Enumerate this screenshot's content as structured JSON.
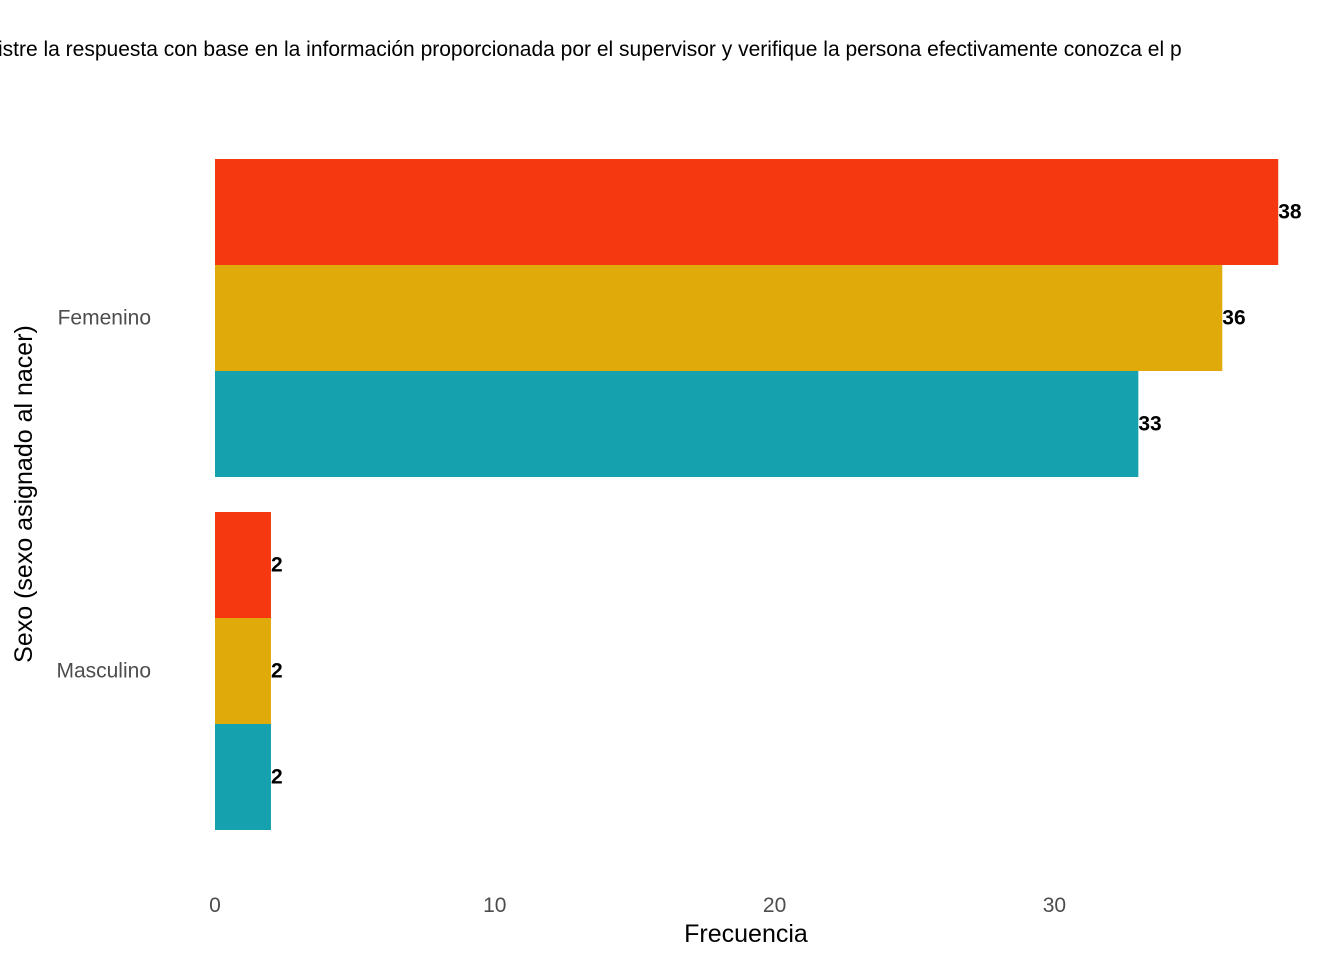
{
  "chart_data": {
    "type": "bar",
    "orientation": "horizontal",
    "title": "istre la respuesta con base en la información proporcionada por el supervisor y verifique la persona efectivamente conozca el p",
    "xlabel": "Frecuencia",
    "ylabel": "Sexo (sexo asignado al nacer)",
    "categories": [
      "Femenino",
      "Masculino"
    ],
    "series": [
      {
        "color": "#F5380F",
        "values": [
          38,
          2
        ]
      },
      {
        "color": "#E0AA0A",
        "values": [
          36,
          2
        ]
      },
      {
        "color": "#16A1AE",
        "values": [
          33,
          2
        ]
      }
    ],
    "xlim": [
      0,
      39.5
    ],
    "xticks": [
      0,
      10,
      20,
      30
    ],
    "grid": false,
    "legend": "none"
  }
}
